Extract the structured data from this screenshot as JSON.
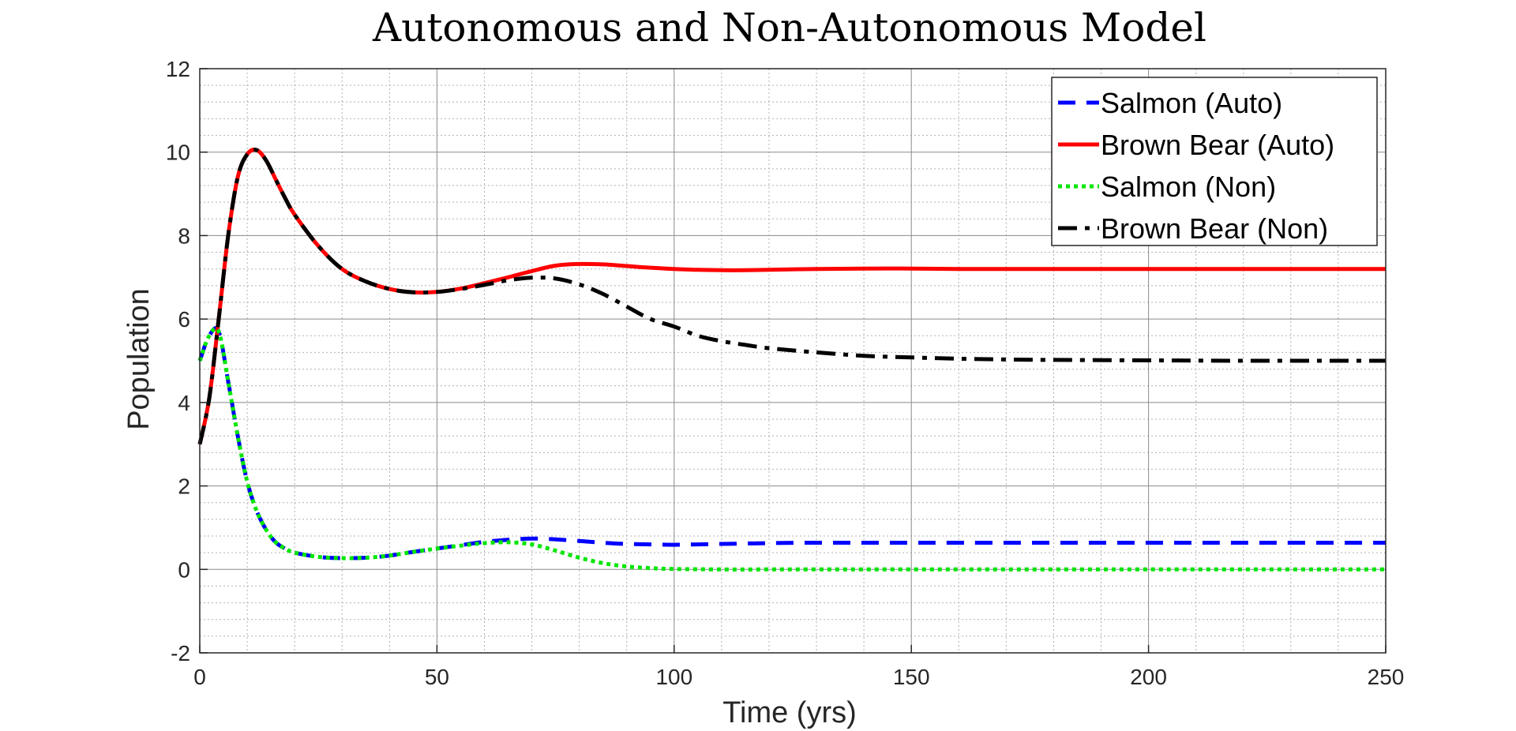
{
  "chart_data": {
    "type": "line",
    "title": "Autonomous and Non-Autonomous Model",
    "xlabel": "Time (yrs)",
    "ylabel": "Population",
    "xlim": [
      0,
      250
    ],
    "ylim": [
      -2,
      12
    ],
    "xticks": [
      0,
      50,
      100,
      150,
      200,
      250
    ],
    "yticks": [
      -2,
      0,
      2,
      4,
      6,
      8,
      10,
      12
    ],
    "grid": true,
    "minor_grid": true,
    "legend_position": "top-right",
    "series": [
      {
        "name": "Salmon (Auto)",
        "color": "#0000ff",
        "style": "dashed",
        "x": [
          0,
          2,
          4,
          6,
          8,
          10,
          12,
          14,
          16,
          18,
          20,
          25,
          30,
          35,
          40,
          45,
          50,
          55,
          60,
          65,
          70,
          75,
          80,
          85,
          90,
          95,
          100,
          105,
          110,
          115,
          120,
          130,
          140,
          150,
          160,
          180,
          200,
          220,
          250
        ],
        "y": [
          5.0,
          5.6,
          5.7,
          4.5,
          3.2,
          2.1,
          1.4,
          0.95,
          0.65,
          0.5,
          0.4,
          0.3,
          0.27,
          0.28,
          0.33,
          0.42,
          0.5,
          0.58,
          0.66,
          0.71,
          0.74,
          0.72,
          0.68,
          0.64,
          0.61,
          0.6,
          0.59,
          0.6,
          0.61,
          0.62,
          0.63,
          0.64,
          0.64,
          0.64,
          0.64,
          0.64,
          0.64,
          0.64,
          0.64
        ]
      },
      {
        "name": "Brown Bear (Auto)",
        "color": "#ff0000",
        "style": "solid",
        "x": [
          0,
          2,
          4,
          6,
          8,
          10,
          12,
          14,
          16,
          18,
          20,
          25,
          30,
          35,
          40,
          45,
          50,
          55,
          60,
          65,
          70,
          75,
          80,
          85,
          90,
          95,
          100,
          105,
          110,
          115,
          120,
          130,
          140,
          150,
          160,
          180,
          200,
          220,
          250
        ],
        "y": [
          3.0,
          4.1,
          6.0,
          8.0,
          9.4,
          9.95,
          10.05,
          9.8,
          9.35,
          8.9,
          8.5,
          7.75,
          7.2,
          6.9,
          6.72,
          6.64,
          6.65,
          6.73,
          6.86,
          7.0,
          7.15,
          7.28,
          7.32,
          7.31,
          7.27,
          7.23,
          7.2,
          7.18,
          7.17,
          7.17,
          7.18,
          7.2,
          7.21,
          7.21,
          7.2,
          7.2,
          7.2,
          7.2,
          7.2
        ]
      },
      {
        "name": "Salmon (Non)",
        "color": "#00e600",
        "style": "dotted",
        "x": [
          0,
          2,
          4,
          6,
          8,
          10,
          12,
          14,
          16,
          18,
          20,
          25,
          30,
          35,
          40,
          45,
          50,
          55,
          60,
          65,
          70,
          75,
          80,
          85,
          90,
          95,
          100,
          110,
          120,
          130,
          150,
          200,
          250
        ],
        "y": [
          5.0,
          5.6,
          5.7,
          4.5,
          3.2,
          2.1,
          1.4,
          0.95,
          0.65,
          0.5,
          0.4,
          0.3,
          0.27,
          0.28,
          0.33,
          0.42,
          0.5,
          0.57,
          0.63,
          0.65,
          0.6,
          0.45,
          0.28,
          0.15,
          0.07,
          0.03,
          0.01,
          0.0,
          0.0,
          0.0,
          0.0,
          0.0,
          0.0
        ]
      },
      {
        "name": "Brown Bear (Non)",
        "color": "#000000",
        "style": "dashdot",
        "x": [
          0,
          2,
          4,
          6,
          8,
          10,
          12,
          14,
          16,
          18,
          20,
          25,
          30,
          35,
          40,
          45,
          50,
          55,
          60,
          65,
          70,
          75,
          80,
          85,
          90,
          95,
          100,
          105,
          110,
          115,
          120,
          130,
          140,
          150,
          160,
          170,
          180,
          200,
          220,
          250
        ],
        "y": [
          3.0,
          4.1,
          6.0,
          8.0,
          9.4,
          9.95,
          10.05,
          9.8,
          9.35,
          8.9,
          8.5,
          7.75,
          7.2,
          6.9,
          6.72,
          6.64,
          6.65,
          6.72,
          6.82,
          6.93,
          6.99,
          6.97,
          6.83,
          6.6,
          6.3,
          6.0,
          5.82,
          5.6,
          5.47,
          5.38,
          5.3,
          5.2,
          5.12,
          5.08,
          5.05,
          5.03,
          5.02,
          5.01,
          5.0,
          5.0
        ]
      }
    ]
  }
}
